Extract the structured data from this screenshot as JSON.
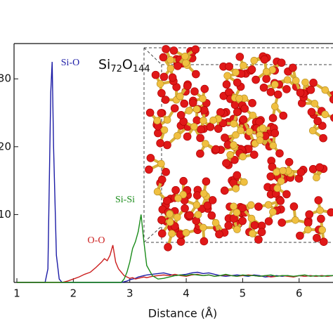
{
  "chart_data": {
    "type": "line",
    "x_label": "Distance (Å)",
    "inset_label": [
      "Si",
      "72",
      "O",
      "144"
    ],
    "x": [
      1.0,
      1.2,
      1.4,
      1.5,
      1.55,
      1.6,
      1.625,
      1.65,
      1.7,
      1.75,
      1.8,
      1.9,
      2.0,
      2.1,
      2.2,
      2.3,
      2.4,
      2.5,
      2.55,
      2.6,
      2.65,
      2.7,
      2.75,
      2.8,
      2.85,
      2.9,
      2.95,
      3.0,
      3.05,
      3.1,
      3.15,
      3.2,
      3.25,
      3.3,
      3.4,
      3.5,
      3.6,
      3.7,
      3.8,
      3.9,
      4.0,
      4.1,
      4.2,
      4.3,
      4.4,
      4.5,
      4.6,
      4.7,
      4.8,
      4.9,
      5.0,
      5.1,
      5.2,
      5.3,
      5.4,
      5.5,
      5.6,
      5.7,
      5.8,
      5.9,
      6.0,
      6.1,
      6.2,
      6.3,
      6.4,
      6.5,
      6.6
    ],
    "series": [
      {
        "name": "Si-O",
        "color": "#1c1ca6",
        "values": [
          0,
          0,
          0,
          0,
          2,
          28,
          32.5,
          20,
          4,
          0.5,
          0,
          0,
          0,
          0,
          0,
          0,
          0,
          0,
          0,
          0,
          0,
          0,
          0,
          0,
          0,
          0.1,
          0.2,
          0.4,
          0.5,
          0.6,
          0.8,
          0.9,
          1.0,
          1.1,
          1.2,
          1.3,
          1.4,
          1.2,
          1.0,
          1.1,
          1.2,
          1.4,
          1.5,
          1.3,
          1.4,
          1.2,
          1.0,
          0.9,
          1.0,
          1.1,
          1.0,
          0.9,
          1.1,
          1.0,
          0.8,
          0.9,
          1.0,
          0.9,
          1.0,
          0.8,
          1.0,
          0.9,
          1.0,
          0.9,
          1.0,
          0.9,
          1.0
        ]
      },
      {
        "name": "O-O",
        "color": "#cc1f1f",
        "values": [
          0,
          0,
          0,
          0,
          0,
          0,
          0,
          0,
          0,
          0,
          0,
          0.2,
          0.5,
          0.8,
          1.2,
          1.5,
          2.2,
          3.0,
          3.5,
          3.2,
          4.0,
          5.5,
          3.0,
          2.0,
          1.5,
          1.0,
          0.8,
          0.6,
          0.7,
          0.5,
          0.6,
          0.7,
          0.8,
          0.7,
          0.9,
          1.0,
          1.1,
          1.0,
          1.2,
          1.0,
          0.9,
          1.1,
          1.2,
          1.0,
          1.1,
          0.9,
          1.0,
          1.1,
          1.0,
          0.9,
          1.0,
          1.1,
          1.0,
          0.9,
          1.0,
          0.8,
          0.9,
          1.0,
          0.9,
          0.8,
          1.0,
          0.9,
          1.0,
          0.9,
          1.0,
          0.9,
          1.0
        ]
      },
      {
        "name": "Si-Si",
        "color": "#1a8c1a",
        "values": [
          0,
          0,
          0,
          0,
          0,
          0,
          0,
          0,
          0,
          0,
          0,
          0,
          0,
          0,
          0,
          0,
          0,
          0,
          0,
          0,
          0,
          0,
          0,
          0,
          0,
          0.5,
          1.5,
          3.0,
          5.0,
          6.0,
          7.5,
          10.0,
          6.0,
          2.5,
          1.0,
          0.5,
          0.6,
          0.8,
          1.0,
          1.1,
          1.0,
          1.2,
          1.1,
          1.0,
          1.1,
          0.9,
          1.0,
          1.2,
          1.0,
          0.9,
          1.1,
          1.0,
          1.0,
          0.9,
          1.0,
          1.1,
          0.9,
          1.0,
          1.0,
          0.9,
          1.0,
          1.1,
          0.9,
          1.0,
          0.9,
          1.0,
          1.0
        ]
      }
    ],
    "xlim": [
      0.95,
      6.6
    ],
    "xticks": [
      1,
      2,
      3,
      4,
      5,
      6
    ],
    "ylim": [
      0,
      35.2
    ],
    "yticks": [
      10,
      20,
      30
    ]
  }
}
